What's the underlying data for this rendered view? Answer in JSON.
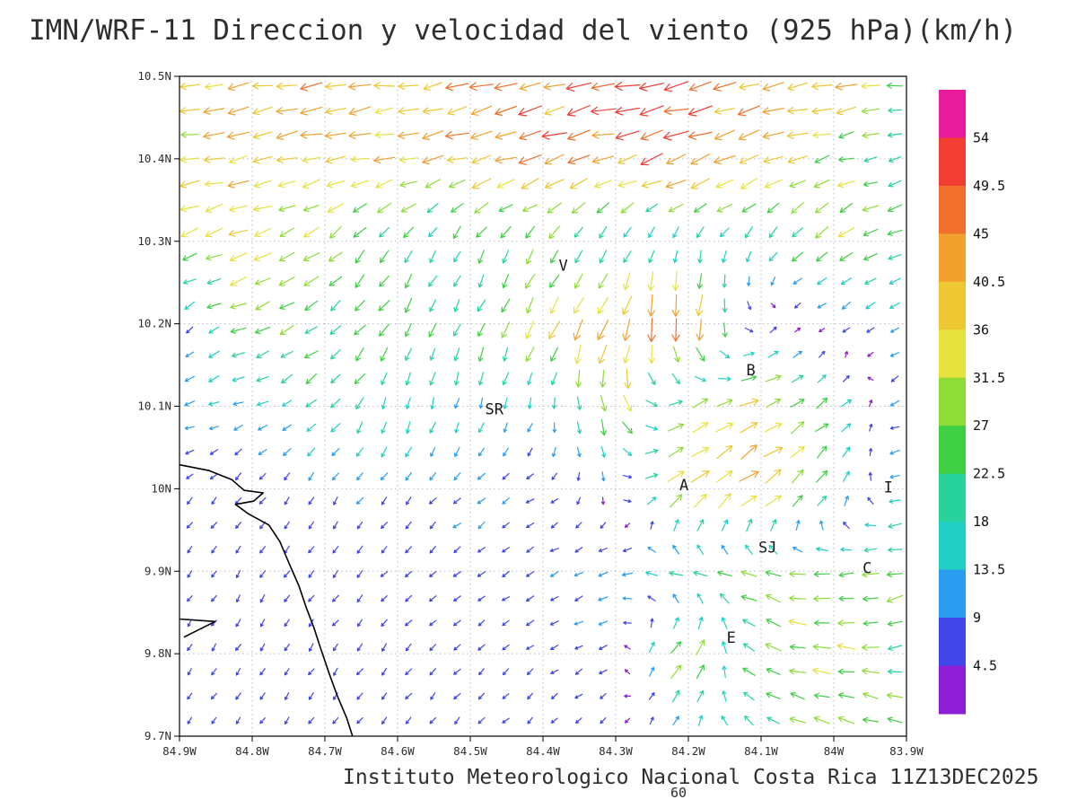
{
  "title": "IMN/WRF-11 Direccion y velocidad del viento (925 hPa)(km/h)",
  "caption": "Instituto Meteorologico Nacional Costa Rica 11Z13DEC2025",
  "forecast_hour": "60",
  "chart_data": {
    "type": "quiver",
    "title": "IMN/WRF-11 Direccion y velocidad del viento (925 hPa)(km/h)",
    "units": "km/h",
    "level": "925 hPa",
    "x_axis": {
      "label": "longitude",
      "range": [
        84.9,
        83.9
      ],
      "ticks": [
        "84.9W",
        "84.8W",
        "84.7W",
        "84.6W",
        "84.5W",
        "84.4W",
        "84.3W",
        "84.2W",
        "84.1W",
        "84W",
        "83.9W"
      ]
    },
    "y_axis": {
      "label": "latitude",
      "range": [
        9.7,
        10.5
      ],
      "ticks": [
        "10.5N",
        "10.4N",
        "10.3N",
        "10.2N",
        "10.1N",
        "10N",
        "9.9N",
        "9.8N",
        "9.7N"
      ]
    },
    "grid": true,
    "colorbar": {
      "labels_top_to_bottom": [
        "54",
        "49.5",
        "45",
        "40.5",
        "36",
        "31.5",
        "27",
        "22.5",
        "18",
        "13.5",
        "9",
        "4.5"
      ],
      "colors_top_to_bottom": [
        "#e81c9c",
        "#f23d33",
        "#f0702c",
        "#f2a12e",
        "#edc832",
        "#e6e23e",
        "#8fdc38",
        "#3ecf43",
        "#27d39b",
        "#22cfc4",
        "#2b9df0",
        "#4046e8",
        "#8d1ed6"
      ]
    },
    "speed_scale_kmh": {
      "thresholds": [
        4.5,
        9,
        13.5,
        18,
        22.5,
        27,
        31.5,
        36,
        40.5,
        45,
        49.5,
        54
      ],
      "colors_low_to_high": [
        "#8d1ed6",
        "#4046e8",
        "#2b9df0",
        "#22cfc4",
        "#27d39b",
        "#3ecf43",
        "#8fdc38",
        "#e6e23e",
        "#edc832",
        "#f2a12e",
        "#f0702c",
        "#f23d33",
        "#e81c9c"
      ]
    },
    "wind_grid": {
      "lons": [
        84.9,
        84.8,
        84.7,
        84.6,
        84.5,
        84.4,
        84.3,
        84.2,
        84.1,
        84.0,
        83.9
      ],
      "lats": [
        10.5,
        10.4,
        10.3,
        10.2,
        10.1,
        10.0,
        9.9,
        9.8,
        9.7
      ],
      "uv_kmh": [
        [
          [
            -31,
            -3
          ],
          [
            -42,
            -6
          ],
          [
            -45,
            -5
          ],
          [
            -38,
            -4
          ],
          [
            -41,
            -8
          ],
          [
            -45,
            -10
          ],
          [
            -50,
            -8
          ],
          [
            -46,
            -12
          ],
          [
            -41,
            -6
          ],
          [
            -44,
            -5
          ],
          [
            -20,
            -3
          ]
        ],
        [
          [
            -36,
            -6
          ],
          [
            -40,
            -9
          ],
          [
            -37,
            -6
          ],
          [
            -35,
            -10
          ],
          [
            -42,
            -12
          ],
          [
            -46,
            -14
          ],
          [
            -40,
            -10
          ],
          [
            -45,
            -16
          ],
          [
            -37,
            -12
          ],
          [
            -28,
            -8
          ],
          [
            -17,
            -4
          ]
        ],
        [
          [
            -30,
            -12
          ],
          [
            -33,
            -14
          ],
          [
            -20,
            -16
          ],
          [
            -10,
            -18
          ],
          [
            -8,
            -16
          ],
          [
            -14,
            -20
          ],
          [
            -7,
            -14
          ],
          [
            -5,
            -12
          ],
          [
            -10,
            -16
          ],
          [
            -25,
            -18
          ],
          [
            -22,
            -10
          ]
        ],
        [
          [
            -5,
            -5
          ],
          [
            -28,
            -11
          ],
          [
            -21,
            -14
          ],
          [
            -13,
            -20
          ],
          [
            -9,
            -22
          ],
          [
            -16,
            -30
          ],
          [
            -18,
            -44
          ],
          [
            -4,
            -54
          ],
          [
            7,
            5
          ],
          [
            -6,
            -4
          ],
          [
            -8,
            -6
          ]
        ],
        [
          [
            -12,
            -3
          ],
          [
            -12,
            -5
          ],
          [
            -13,
            -15
          ],
          [
            -6,
            -18
          ],
          [
            -4,
            -14
          ],
          [
            -2,
            -12
          ],
          [
            12,
            -32
          ],
          [
            26,
            14
          ],
          [
            33,
            16
          ],
          [
            18,
            15
          ],
          [
            -14,
            -8
          ]
        ],
        [
          [
            -4,
            -5
          ],
          [
            -5,
            -6
          ],
          [
            -4,
            -6
          ],
          [
            -6,
            -8
          ],
          [
            -8,
            -6
          ],
          [
            -6,
            -4
          ],
          [
            3,
            -5
          ],
          [
            34,
            26
          ],
          [
            34,
            24
          ],
          [
            14,
            18
          ],
          [
            -17,
            -5
          ]
        ],
        [
          [
            -3,
            -4
          ],
          [
            -4,
            -6
          ],
          [
            -5,
            -6
          ],
          [
            -5,
            -5
          ],
          [
            -6,
            -5
          ],
          [
            -8,
            -4
          ],
          [
            -11,
            -4
          ],
          [
            -22,
            7
          ],
          [
            -24,
            10
          ],
          [
            -24,
            -4
          ],
          [
            -28,
            -7
          ]
        ],
        [
          [
            -3,
            -4
          ],
          [
            -4,
            -6
          ],
          [
            -4,
            -6
          ],
          [
            -5,
            -6
          ],
          [
            -5,
            -5
          ],
          [
            -6,
            -4
          ],
          [
            -7,
            -3
          ],
          [
            26,
            30
          ],
          [
            -27,
            9
          ],
          [
            -32,
            5
          ],
          [
            -23,
            -4
          ]
        ],
        [
          [
            -2.5,
            -3.5
          ],
          [
            -3,
            -4
          ],
          [
            -4,
            -5
          ],
          [
            -4,
            -5
          ],
          [
            -5,
            -5
          ],
          [
            -4,
            -4
          ],
          [
            -3,
            -4
          ],
          [
            5,
            8
          ],
          [
            -17,
            11
          ],
          [
            -27,
            9
          ],
          [
            -22,
            7
          ]
        ]
      ]
    },
    "cities": [
      {
        "label": "V",
        "lon": 84.372,
        "lat": 10.271
      },
      {
        "label": "B",
        "lon": 84.114,
        "lat": 10.144
      },
      {
        "label": "SR",
        "lon": 84.467,
        "lat": 10.097
      },
      {
        "label": "A",
        "lon": 84.206,
        "lat": 10.005
      },
      {
        "label": "SJ",
        "lon": 84.091,
        "lat": 9.929
      },
      {
        "label": "C",
        "lon": 83.954,
        "lat": 9.904
      },
      {
        "label": "E",
        "lon": 84.141,
        "lat": 9.82
      },
      {
        "label": "I",
        "lon": 83.925,
        "lat": 10.002
      }
    ],
    "coastline_lonlat": [
      [
        [
          84.9,
          10.029
        ],
        [
          84.859,
          10.022
        ],
        [
          84.828,
          10.011
        ],
        [
          84.811,
          9.998
        ],
        [
          84.785,
          9.995
        ],
        [
          84.798,
          9.985
        ],
        [
          84.823,
          9.981
        ],
        [
          84.806,
          9.97
        ],
        [
          84.777,
          9.956
        ],
        [
          84.762,
          9.936
        ],
        [
          84.749,
          9.909
        ],
        [
          84.736,
          9.883
        ],
        [
          84.726,
          9.857
        ],
        [
          84.715,
          9.831
        ],
        [
          84.706,
          9.807
        ],
        [
          84.695,
          9.778
        ],
        [
          84.683,
          9.749
        ],
        [
          84.67,
          9.722
        ],
        [
          84.662,
          9.7
        ]
      ],
      [
        [
          84.9,
          9.842
        ],
        [
          84.851,
          9.839
        ],
        [
          84.894,
          9.82
        ]
      ]
    ],
    "layout": {
      "arrow_cols": 30,
      "arrow_rows": 27,
      "grid_color": "#b9b9c9",
      "coast_color": "#000000",
      "text_color": "#2e2e2e"
    }
  }
}
